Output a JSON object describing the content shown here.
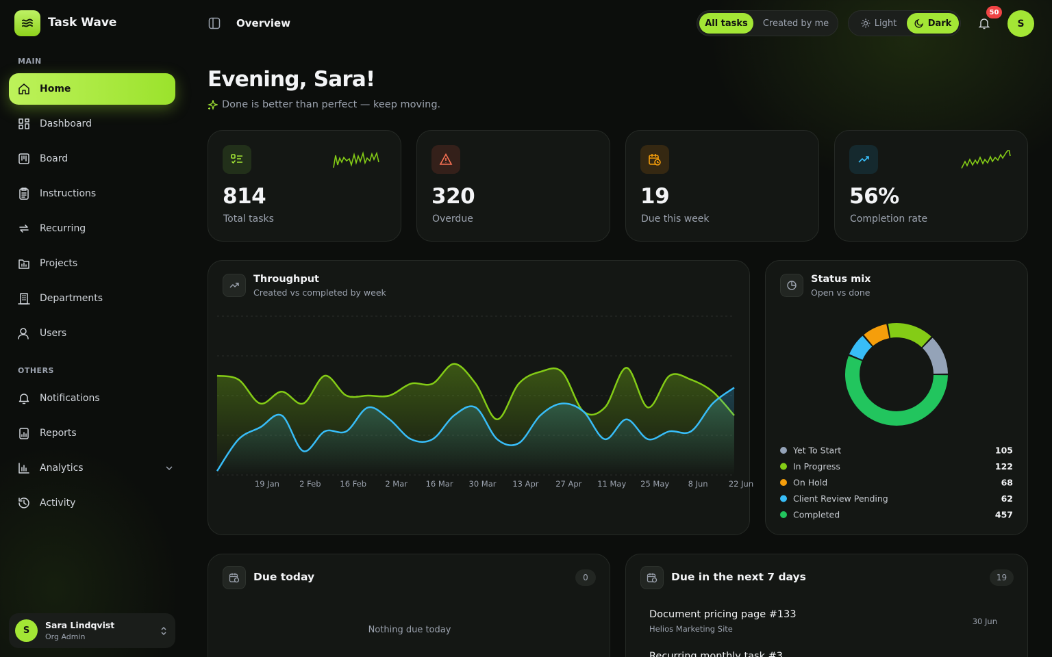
{
  "app": {
    "name": "Task Wave"
  },
  "sidebar": {
    "sections": [
      {
        "label": "MAIN",
        "items": [
          {
            "label": "Home",
            "active": true
          },
          {
            "label": "Dashboard"
          },
          {
            "label": "Board"
          },
          {
            "label": "Instructions"
          },
          {
            "label": "Recurring"
          },
          {
            "label": "Projects"
          },
          {
            "label": "Departments"
          },
          {
            "label": "Users"
          }
        ]
      },
      {
        "label": "OTHERS",
        "items": [
          {
            "label": "Notifications"
          },
          {
            "label": "Reports"
          },
          {
            "label": "Analytics",
            "expandable": true
          },
          {
            "label": "Activity"
          }
        ]
      }
    ],
    "user": {
      "initial": "S",
      "name": "Sara Lindqvist",
      "role": "Org Admin"
    }
  },
  "topbar": {
    "title": "Overview",
    "filters": [
      "All tasks",
      "Created by me"
    ],
    "themes": [
      "Light",
      "Dark"
    ],
    "notification_count": 50,
    "avatar": "S"
  },
  "greeting": {
    "title": "Evening, Sara!",
    "subtitle": "Done is better than perfect — keep moving."
  },
  "stats": [
    {
      "value": 814,
      "label": "Total tasks"
    },
    {
      "value": 320,
      "label": "Overdue"
    },
    {
      "value": 19,
      "label": "Due this week"
    },
    {
      "value": 56,
      "value_label": "56%",
      "label": "Completion rate"
    }
  ],
  "chart_data": [
    {
      "type": "line",
      "title": "Throughput",
      "subtitle": "Created vs completed by week",
      "categories": [
        null,
        null,
        "19 Jan",
        null,
        "2 Feb",
        null,
        "16 Feb",
        null,
        "2 Mar",
        null,
        "16 Mar",
        null,
        "30 Mar",
        null,
        "13 Apr",
        null,
        "27 Apr",
        null,
        "11 May",
        null,
        "25 May",
        null,
        "8 Jun",
        null,
        "22 Jun"
      ],
      "series": [
        {
          "color": "#84cc16",
          "values": [
            25,
            24,
            18,
            21,
            18,
            25,
            20,
            20,
            20,
            23,
            23,
            28,
            23,
            14,
            23,
            26,
            26,
            16,
            17,
            27,
            17,
            25,
            24,
            21,
            15
          ]
        },
        {
          "color": "#38bdf8",
          "values": [
            1,
            9,
            12,
            15,
            6,
            11,
            11,
            17,
            14,
            9,
            9,
            15,
            17,
            9,
            8,
            15,
            18,
            16,
            9,
            14,
            9,
            11,
            11,
            18,
            22
          ]
        }
      ],
      "ylim": [
        0,
        40
      ],
      "gridlines": [
        0,
        10,
        20,
        30,
        40
      ],
      "grid": true
    },
    {
      "type": "donut",
      "title": "Status mix",
      "subtitle": "Open vs done",
      "categories": [
        "Yet To Start",
        "In Progress",
        "On Hold",
        "Client Review Pending",
        "Completed"
      ],
      "values": [
        105,
        122,
        68,
        62,
        457
      ],
      "colors": [
        "#94a3b8",
        "#84cc16",
        "#f59e0b",
        "#38bdf8",
        "#22c55e"
      ]
    }
  ],
  "due_today": {
    "title": "Due today",
    "count": 0,
    "empty": "Nothing due today"
  },
  "due_week": {
    "title": "Due in the next 7 days",
    "count": 19,
    "items": [
      {
        "title": "Document pricing page #133",
        "project": "Helios Marketing Site",
        "date": "30 Jun"
      },
      {
        "title": "Recurring monthly task #3"
      }
    ]
  }
}
